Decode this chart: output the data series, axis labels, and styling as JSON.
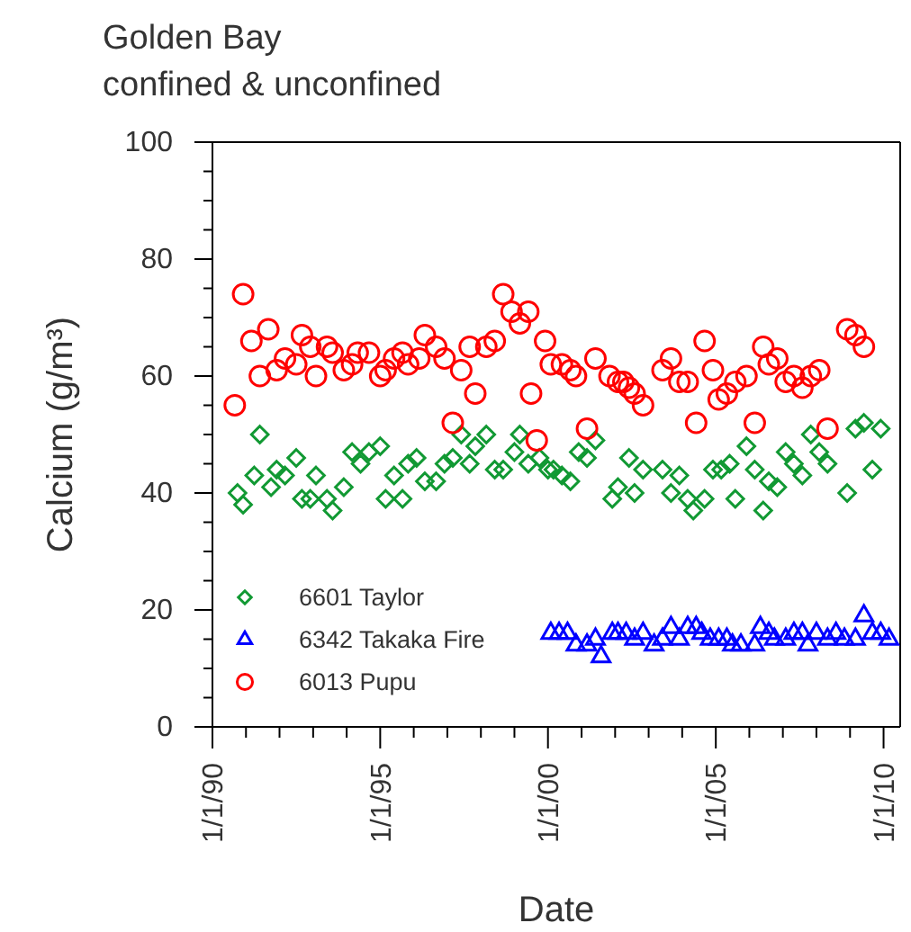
{
  "chart_data": {
    "type": "scatter",
    "title": "Golden Bay",
    "subtitle": "confined & unconfined",
    "xlabel": "Date",
    "ylabel": "Calcium (g/m³)",
    "xlim": [
      "1990-01-01",
      "2010-07-01"
    ],
    "xticks": [
      {
        "value": "1990-01-01",
        "label": "1/1/90"
      },
      {
        "value": "1991-01-01",
        "label": null
      },
      {
        "value": "1992-01-01",
        "label": null
      },
      {
        "value": "1993-01-01",
        "label": null
      },
      {
        "value": "1994-01-01",
        "label": null
      },
      {
        "value": "1995-01-01",
        "label": "1/1/95"
      },
      {
        "value": "1996-01-01",
        "label": null
      },
      {
        "value": "1997-01-01",
        "label": null
      },
      {
        "value": "1998-01-01",
        "label": null
      },
      {
        "value": "1999-01-01",
        "label": null
      },
      {
        "value": "2000-01-01",
        "label": "1/1/00"
      },
      {
        "value": "2001-01-01",
        "label": null
      },
      {
        "value": "2002-01-01",
        "label": null
      },
      {
        "value": "2003-01-01",
        "label": null
      },
      {
        "value": "2004-01-01",
        "label": null
      },
      {
        "value": "2005-01-01",
        "label": "1/1/05"
      },
      {
        "value": "2006-01-01",
        "label": null
      },
      {
        "value": "2007-01-01",
        "label": null
      },
      {
        "value": "2008-01-01",
        "label": null
      },
      {
        "value": "2009-01-01",
        "label": null
      },
      {
        "value": "2010-01-01",
        "label": "1/1/10"
      }
    ],
    "ylim": [
      0,
      100
    ],
    "yticks": [
      0,
      {
        "value": 5,
        "label": null
      },
      20,
      {
        "value": 10,
        "label": null
      },
      {
        "value": 15,
        "label": null
      },
      {
        "value": 25,
        "label": null
      },
      {
        "value": 30,
        "label": null
      },
      {
        "value": 35,
        "label": null
      },
      40,
      {
        "value": 45,
        "label": null
      },
      {
        "value": 50,
        "label": null
      },
      {
        "value": 55,
        "label": null
      },
      60,
      {
        "value": 65,
        "label": null
      },
      {
        "value": 70,
        "label": null
      },
      {
        "value": 75,
        "label": null
      },
      80,
      {
        "value": 85,
        "label": null
      },
      {
        "value": 90,
        "label": null
      },
      {
        "value": 95,
        "label": null
      },
      100
    ],
    "grid": false,
    "legend": "bottom left",
    "series": [
      {
        "name": "6601 Taylor",
        "color": "#119933",
        "marker": "diamond",
        "x": [
          "1990-10",
          "1990-12",
          "1991-04",
          "1991-06",
          "1991-10",
          "1991-12",
          "1992-03",
          "1992-07",
          "1992-09",
          "1992-12",
          "1993-02",
          "1993-06",
          "1993-08",
          "1993-12",
          "1994-03",
          "1994-06",
          "1994-09",
          "1995-01",
          "1995-03",
          "1995-06",
          "1995-09",
          "1995-11",
          "1996-02",
          "1996-05",
          "1996-09",
          "1996-12",
          "1997-03",
          "1997-06",
          "1997-09",
          "1997-11",
          "1998-03",
          "1998-06",
          "1998-09",
          "1999-01",
          "1999-03",
          "1999-06",
          "1999-10",
          "2000-01",
          "2000-03",
          "2000-06",
          "2000-09",
          "2000-12",
          "2001-03",
          "2001-06",
          "2001-12",
          "2002-02",
          "2002-06",
          "2002-08",
          "2002-11",
          "2003-06",
          "2003-09",
          "2003-12",
          "2004-03",
          "2004-05",
          "2004-09",
          "2004-12",
          "2005-03",
          "2005-06",
          "2005-08",
          "2005-12",
          "2006-03",
          "2006-06",
          "2006-08",
          "2006-11",
          "2007-02",
          "2007-05",
          "2007-08",
          "2007-11",
          "2008-02",
          "2008-05",
          "2008-12",
          "2009-03",
          "2009-06",
          "2009-09",
          "2009-12"
        ],
        "values": [
          40,
          38,
          43,
          50,
          41,
          44,
          43,
          46,
          39,
          39,
          43,
          39,
          37,
          41,
          47,
          45,
          47,
          48,
          39,
          43,
          39,
          45,
          46,
          42,
          42,
          45,
          46,
          50,
          45,
          48,
          50,
          44,
          44,
          47,
          50,
          45,
          46,
          44,
          44,
          43,
          42,
          47,
          46,
          49,
          39,
          41,
          46,
          40,
          44,
          44,
          40,
          43,
          39,
          37,
          39,
          44,
          44,
          45,
          39,
          48,
          44,
          37,
          42,
          41,
          47,
          45,
          43,
          50,
          47,
          45,
          40,
          51,
          52,
          44,
          51
        ]
      },
      {
        "name": "6342 Takaka Fire",
        "color": "#0000ff",
        "marker": "triangle",
        "x": [
          "2000-02",
          "2000-05",
          "2000-08",
          "2000-11",
          "2001-03",
          "2001-06",
          "2001-08",
          "2001-12",
          "2002-02",
          "2002-05",
          "2002-08",
          "2002-11",
          "2003-03",
          "2003-06",
          "2003-09",
          "2003-12",
          "2004-03",
          "2004-06",
          "2004-08",
          "2004-11",
          "2005-02",
          "2005-05",
          "2005-07",
          "2005-10",
          "2006-03",
          "2006-05",
          "2006-08",
          "2006-10",
          "2007-02",
          "2007-05",
          "2007-08",
          "2007-10",
          "2008-01",
          "2008-05",
          "2008-08",
          "2008-11",
          "2009-03",
          "2009-06",
          "2009-09",
          "2009-12",
          "2010-03"
        ],
        "values": [
          16,
          16,
          16,
          14,
          14,
          15,
          12,
          16,
          16,
          16,
          15,
          16,
          14,
          15,
          17,
          15,
          17,
          17,
          16,
          15,
          15,
          15,
          14,
          14,
          14,
          17,
          16,
          15,
          15,
          16,
          16,
          14,
          16,
          15,
          16,
          15,
          15,
          19,
          16,
          16,
          15
        ]
      },
      {
        "name": "6013 Pupu",
        "color": "#ff0000",
        "marker": "circle",
        "x": [
          "1990-09",
          "1990-12",
          "1991-03",
          "1991-06",
          "1991-09",
          "1991-12",
          "1992-03",
          "1992-07",
          "1992-09",
          "1992-12",
          "1993-02",
          "1993-06",
          "1993-08",
          "1993-12",
          "1994-03",
          "1994-05",
          "1994-09",
          "1995-01",
          "1995-03",
          "1995-06",
          "1995-09",
          "1995-11",
          "1996-03",
          "1996-05",
          "1996-09",
          "1996-12",
          "1997-03",
          "1997-06",
          "1997-09",
          "1997-11",
          "1998-03",
          "1998-06",
          "1998-09",
          "1998-12",
          "1999-03",
          "1999-06",
          "1999-07",
          "1999-09",
          "1999-12",
          "2000-02",
          "2000-06",
          "2000-09",
          "2000-11",
          "2001-03",
          "2001-06",
          "2001-11",
          "2002-02",
          "2002-04",
          "2002-06",
          "2002-08",
          "2002-11",
          "2003-06",
          "2003-09",
          "2003-12",
          "2004-03",
          "2004-06",
          "2004-09",
          "2004-12",
          "2005-02",
          "2005-05",
          "2005-08",
          "2005-12",
          "2006-03",
          "2006-06",
          "2006-08",
          "2006-11",
          "2007-02",
          "2007-05",
          "2007-08",
          "2007-11",
          "2008-02",
          "2008-05",
          "2008-12",
          "2009-03",
          "2009-06"
        ],
        "values": [
          55,
          74,
          66,
          60,
          68,
          61,
          63,
          62,
          67,
          65,
          60,
          65,
          64,
          61,
          62,
          64,
          64,
          60,
          61,
          63,
          64,
          62,
          63,
          67,
          65,
          63,
          52,
          61,
          65,
          57,
          65,
          66,
          74,
          71,
          69,
          71,
          57,
          49,
          66,
          62,
          62,
          61,
          60,
          51,
          63,
          60,
          59,
          59,
          58,
          57,
          55,
          61,
          63,
          59,
          59,
          52,
          66,
          61,
          56,
          57,
          59,
          60,
          52,
          65,
          62,
          63,
          59,
          60,
          58,
          60,
          61,
          51,
          68,
          67,
          65
        ]
      }
    ]
  }
}
